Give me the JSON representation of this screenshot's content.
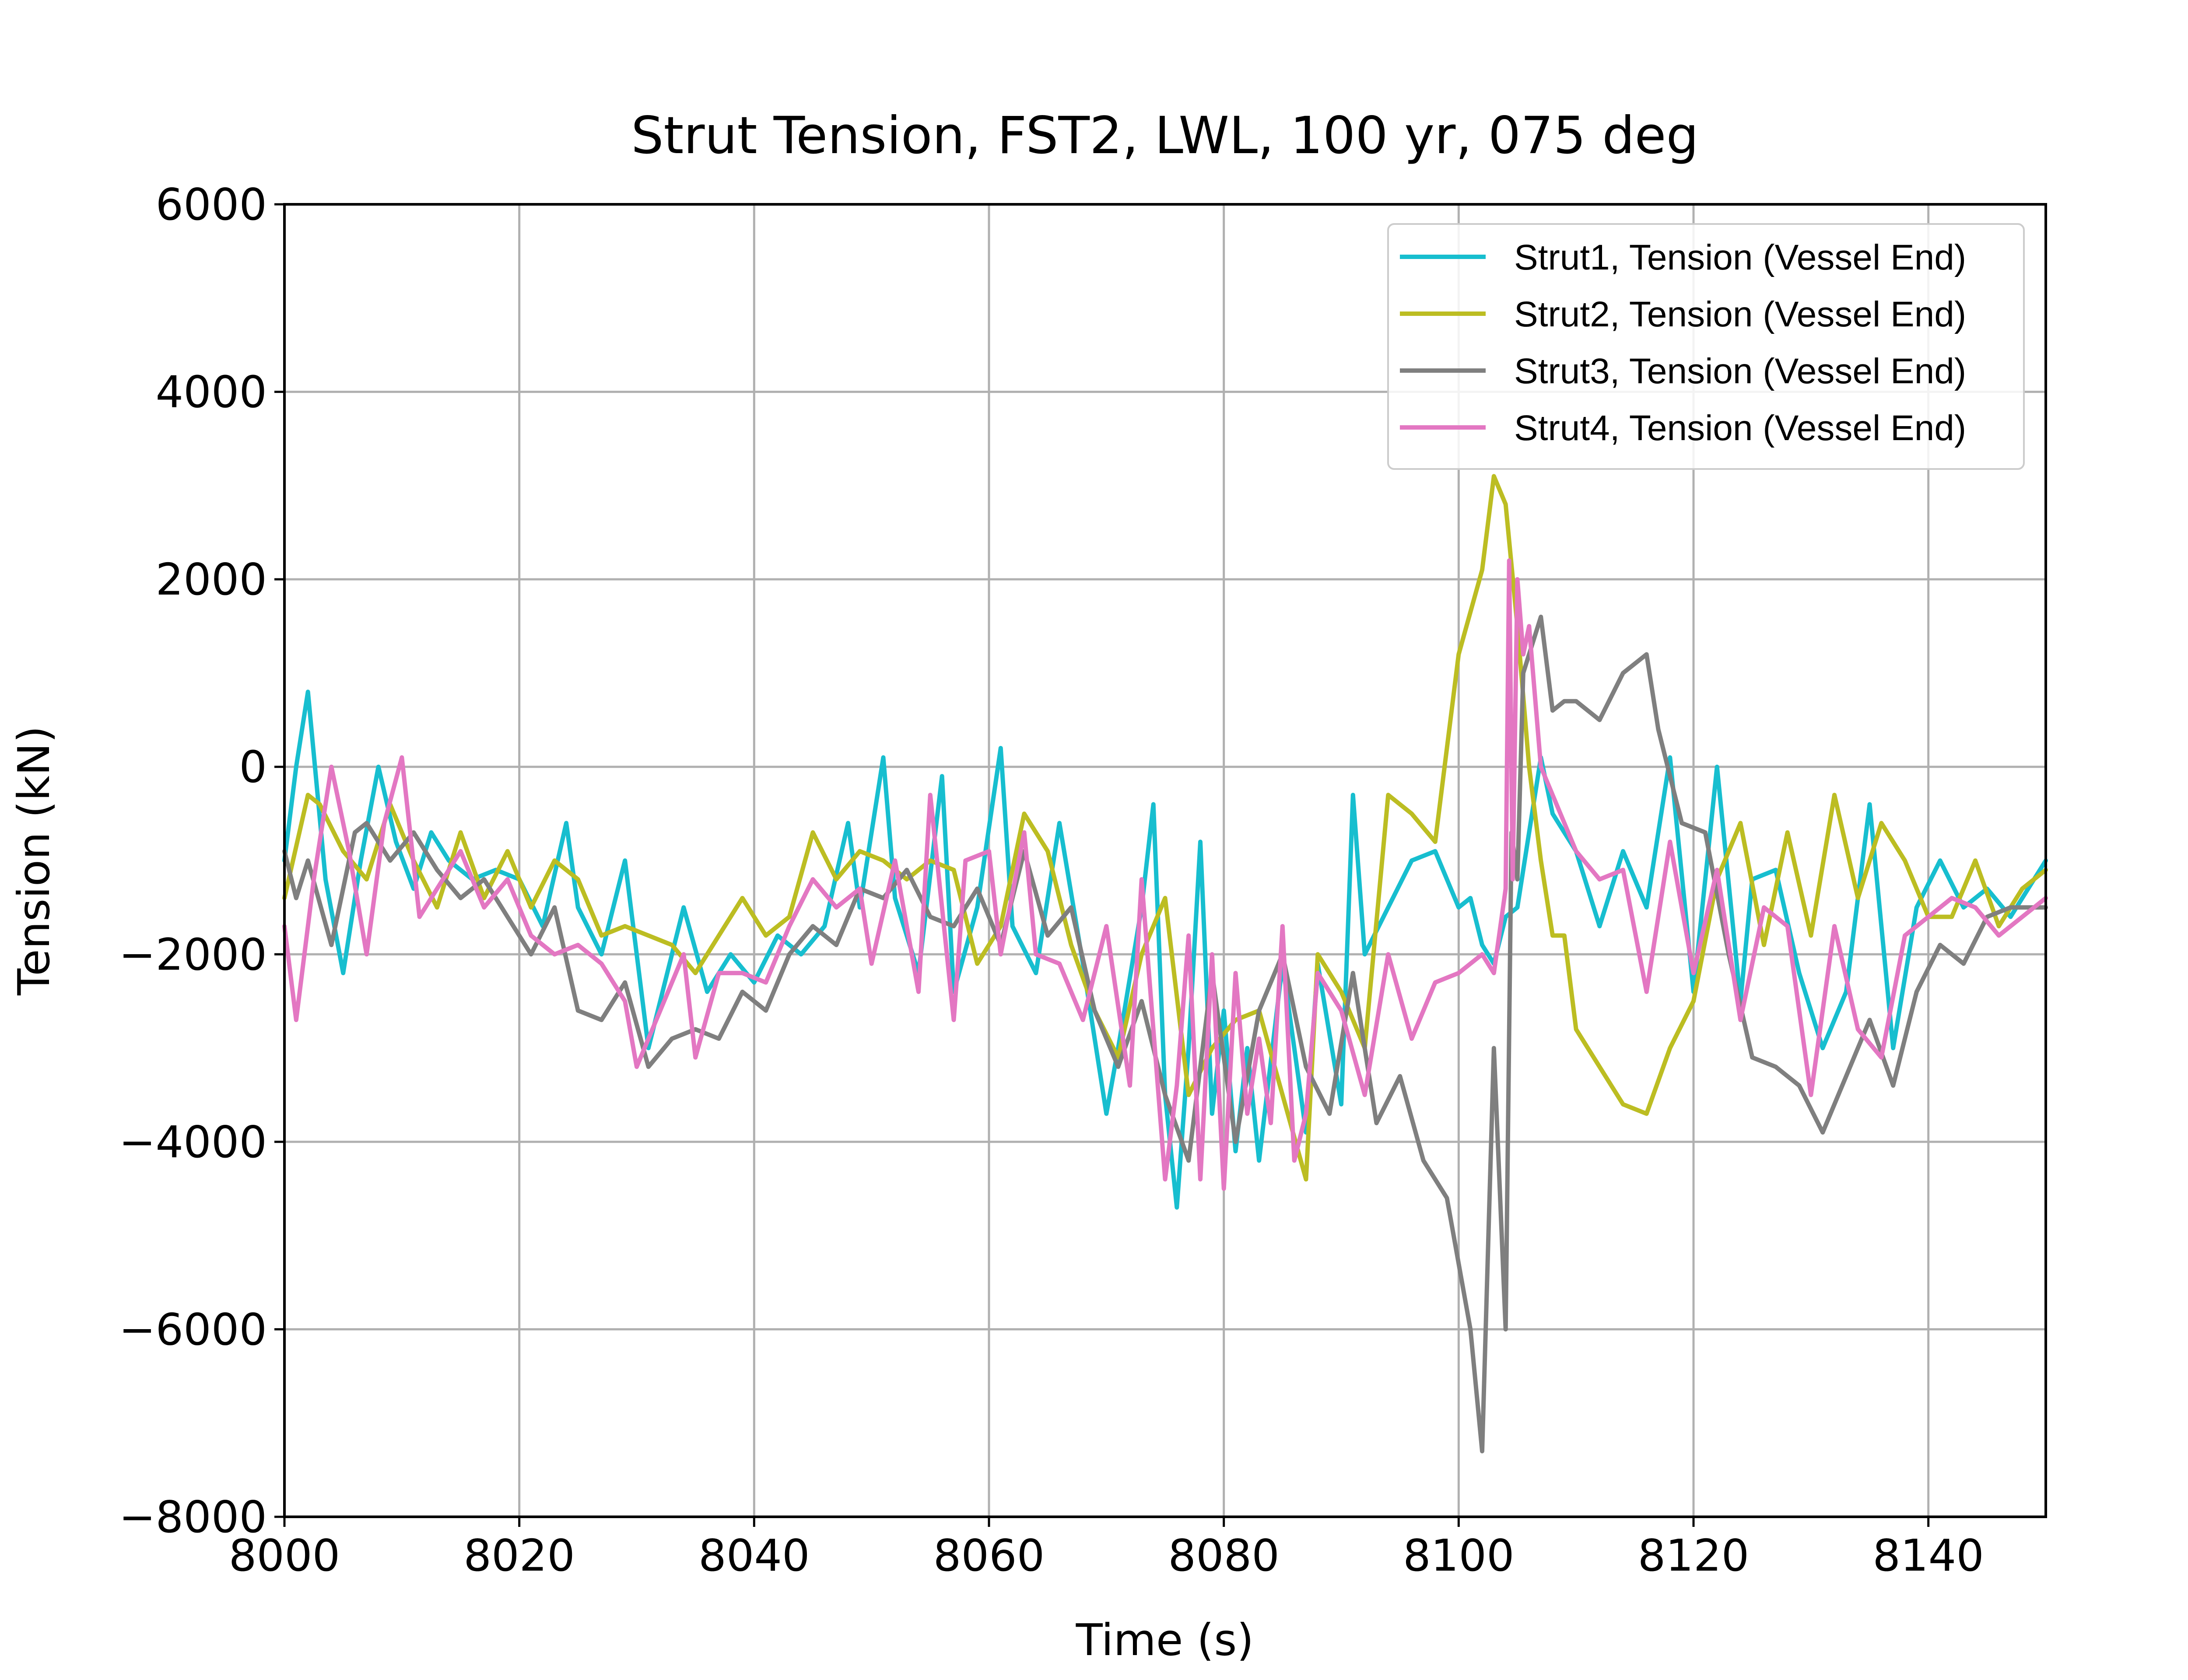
{
  "chart_data": {
    "type": "line",
    "title": "Strut Tension, FST2, LWL, 100 yr, 075 deg",
    "xlabel": "Time (s)",
    "ylabel": "Tension (kN)",
    "xlim": [
      8000,
      8150
    ],
    "ylim": [
      -8000,
      6000
    ],
    "xticks": [
      8000,
      8020,
      8040,
      8060,
      8080,
      8100,
      8120,
      8140
    ],
    "yticks": [
      -8000,
      -6000,
      -4000,
      -2000,
      0,
      2000,
      4000,
      6000
    ],
    "xtick_labels": [
      "8000",
      "8020",
      "8040",
      "8060",
      "8080",
      "8100",
      "8120",
      "8140"
    ],
    "ytick_labels": [
      "−8000",
      "−6000",
      "−4000",
      "−2000",
      "0",
      "2000",
      "4000",
      "6000"
    ],
    "grid": true,
    "legend_position": "top-right",
    "series": [
      {
        "name": "Strut1, Tension (Vessel End)",
        "color": "#17becf",
        "x": [
          8000,
          8001,
          8002,
          8003.5,
          8005,
          8006.5,
          8008,
          8009.5,
          8011,
          8012.5,
          8014,
          8016,
          8018,
          8020,
          8022,
          8024,
          8025,
          8027,
          8029,
          8031,
          8032,
          8034,
          8036,
          8038,
          8040,
          8042,
          8044,
          8046,
          8048,
          8049,
          8051,
          8052,
          8054,
          8056,
          8057,
          8059,
          8061,
          8062,
          8064,
          8066,
          8068,
          8070,
          8071,
          8073,
          8074,
          8075,
          8076,
          8077,
          8078,
          8079,
          8080,
          8081,
          8082,
          8083,
          8085,
          8087,
          8088,
          8090,
          8091,
          8092,
          8094,
          8096,
          8098,
          8100,
          8101,
          8102,
          8103,
          8104,
          8105,
          8106,
          8107,
          8108,
          8109,
          8110,
          8112,
          8114,
          8116,
          8118,
          8120,
          8122,
          8124,
          8125,
          8127,
          8129,
          8131,
          8133,
          8135,
          8137,
          8139,
          8141,
          8143,
          8145,
          8147,
          8150
        ],
        "y": [
          -1000,
          0,
          800,
          -1200,
          -2200,
          -1000,
          0,
          -800,
          -1300,
          -700,
          -1000,
          -1200,
          -1100,
          -1200,
          -1700,
          -600,
          -1500,
          -2000,
          -1000,
          -3000,
          -2500,
          -1500,
          -2400,
          -2000,
          -2300,
          -1800,
          -2000,
          -1700,
          -600,
          -1500,
          100,
          -1400,
          -2200,
          -100,
          -2400,
          -1500,
          200,
          -1700,
          -2200,
          -600,
          -2100,
          -3700,
          -3000,
          -1500,
          -400,
          -3500,
          -4700,
          -3000,
          -800,
          -3700,
          -2600,
          -4100,
          -3000,
          -4200,
          -2100,
          -3900,
          -2100,
          -3600,
          -300,
          -2000,
          -1500,
          -1000,
          -900,
          -1500,
          -1400,
          -1900,
          -2100,
          -1600,
          -1500,
          -700,
          100,
          -500,
          -700,
          -900,
          -1700,
          -900,
          -1500,
          100,
          -2400,
          0,
          -2500,
          -1200,
          -1100,
          -2200,
          -3000,
          -2400,
          -400,
          -3000,
          -1500,
          -1000,
          -1500,
          -1300,
          -1600,
          -1000
        ]
      },
      {
        "name": "Strut2, Tension (Vessel End)",
        "color": "#bcbd22",
        "x": [
          8000,
          8002,
          8003,
          8005,
          8007,
          8009,
          8011,
          8013,
          8015,
          8017,
          8019,
          8021,
          8023,
          8025,
          8027,
          8029,
          8031,
          8033,
          8035,
          8037,
          8039,
          8041,
          8043,
          8045,
          8047,
          8049,
          8051,
          8053,
          8055,
          8057,
          8059,
          8061,
          8063,
          8065,
          8067,
          8069,
          8071,
          8073,
          8075,
          8077,
          8079,
          8081,
          8083,
          8085,
          8087,
          8088,
          8090,
          8092,
          8094,
          8096,
          8098,
          8100,
          8102,
          8103,
          8104,
          8105,
          8106,
          8107,
          8108,
          8109,
          8110,
          8112,
          8114,
          8116,
          8118,
          8120,
          8122,
          8124,
          8126,
          8128,
          8130,
          8132,
          8134,
          8136,
          8138,
          8140,
          8142,
          8144,
          8146,
          8148,
          8150
        ],
        "y": [
          -1400,
          -300,
          -400,
          -900,
          -1200,
          -400,
          -1000,
          -1500,
          -700,
          -1400,
          -900,
          -1500,
          -1000,
          -1200,
          -1800,
          -1700,
          -1800,
          -1900,
          -2200,
          -1800,
          -1400,
          -1800,
          -1600,
          -700,
          -1200,
          -900,
          -1000,
          -1200,
          -1000,
          -1100,
          -2100,
          -1700,
          -500,
          -900,
          -1900,
          -2600,
          -3100,
          -2000,
          -1400,
          -3500,
          -3000,
          -2700,
          -2600,
          -3500,
          -4400,
          -2000,
          -2400,
          -3000,
          -300,
          -500,
          -800,
          1200,
          2100,
          3100,
          2800,
          1500,
          0,
          -1000,
          -1800,
          -1800,
          -2800,
          -3200,
          -3600,
          -3700,
          -3000,
          -2500,
          -1200,
          -600,
          -1900,
          -700,
          -1800,
          -300,
          -1400,
          -600,
          -1000,
          -1600,
          -1600,
          -1000,
          -1700,
          -1300,
          -1100
        ]
      },
      {
        "name": "Strut3, Tension (Vessel End)",
        "color": "#7f7f7f",
        "x": [
          8000,
          8001,
          8002,
          8004,
          8006,
          8007,
          8009,
          8011,
          8013,
          8015,
          8017,
          8019,
          8021,
          8023,
          8025,
          8027,
          8029,
          8031,
          8033,
          8035,
          8037,
          8039,
          8041,
          8043,
          8045,
          8047,
          8049,
          8051,
          8053,
          8055,
          8057,
          8059,
          8061,
          8063,
          8065,
          8067,
          8069,
          8071,
          8073,
          8075,
          8077,
          8079,
          8081,
          8083,
          8085,
          8087,
          8089,
          8091,
          8093,
          8095,
          8097,
          8099,
          8101,
          8102,
          8103,
          8104,
          8104.5,
          8105,
          8105.5,
          8106,
          8107,
          8108,
          8109,
          8110,
          8112,
          8114,
          8116,
          8117,
          8119,
          8121,
          8123,
          8125,
          8127,
          8129,
          8131,
          8133,
          8135,
          8137,
          8139,
          8141,
          8143,
          8145,
          8147,
          8150
        ],
        "y": [
          -900,
          -1400,
          -1000,
          -1900,
          -700,
          -600,
          -1000,
          -700,
          -1100,
          -1400,
          -1200,
          -1600,
          -2000,
          -1500,
          -2600,
          -2700,
          -2300,
          -3200,
          -2900,
          -2800,
          -2900,
          -2400,
          -2600,
          -2000,
          -1700,
          -1900,
          -1300,
          -1400,
          -1100,
          -1600,
          -1700,
          -1300,
          -1900,
          -900,
          -1800,
          -1500,
          -2600,
          -3200,
          -2500,
          -3500,
          -4200,
          -2200,
          -4000,
          -2600,
          -2000,
          -3200,
          -3700,
          -2200,
          -3800,
          -3300,
          -4200,
          -4600,
          -6000,
          -7300,
          -3000,
          -6000,
          -700,
          -1200,
          1000,
          1200,
          1600,
          600,
          700,
          700,
          500,
          1000,
          1200,
          400,
          -600,
          -700,
          -2000,
          -3100,
          -3200,
          -3400,
          -3900,
          -3300,
          -2700,
          -3400,
          -2400,
          -1900,
          -2100,
          -1600,
          -1500,
          -1500
        ]
      },
      {
        "name": "Strut4, Tension (Vessel End)",
        "color": "#e377c2",
        "x": [
          8000,
          8001,
          8002.5,
          8004,
          8005.5,
          8007,
          8008.5,
          8010,
          8011.5,
          8013,
          8015,
          8017,
          8019,
          8021,
          8023,
          8025,
          8027,
          8029,
          8030,
          8032,
          8034,
          8035,
          8037,
          8039,
          8041,
          8043,
          8045,
          8047,
          8049,
          8050,
          8052,
          8054,
          8055,
          8057,
          8058,
          8060,
          8061,
          8063,
          8064,
          8066,
          8068,
          8070,
          8072,
          8073,
          8075,
          8076,
          8077,
          8078,
          8079,
          8080,
          8081,
          8082,
          8083,
          8084,
          8085,
          8086,
          8087,
          8088,
          8090,
          8092,
          8094,
          8096,
          8098,
          8100,
          8102,
          8103,
          8104,
          8104.3,
          8104.6,
          8105,
          8105.5,
          8106,
          8107,
          8108,
          8110,
          8112,
          8114,
          8116,
          8118,
          8120,
          8122,
          8124,
          8126,
          8128,
          8130,
          8132,
          8134,
          8136,
          8138,
          8140,
          8142,
          8144,
          8146,
          8148,
          8150
        ],
        "y": [
          -1700,
          -2700,
          -1200,
          0,
          -900,
          -2000,
          -600,
          100,
          -1600,
          -1300,
          -900,
          -1500,
          -1200,
          -1800,
          -2000,
          -1900,
          -2100,
          -2500,
          -3200,
          -2600,
          -2000,
          -3100,
          -2200,
          -2200,
          -2300,
          -1700,
          -1200,
          -1500,
          -1300,
          -2100,
          -1000,
          -2400,
          -300,
          -2700,
          -1000,
          -900,
          -2000,
          -700,
          -2000,
          -2100,
          -2700,
          -1700,
          -3400,
          -1200,
          -4400,
          -3400,
          -1800,
          -4400,
          -2000,
          -4500,
          -2200,
          -3700,
          -2900,
          -3800,
          -1700,
          -4200,
          -3700,
          -2200,
          -2600,
          -3500,
          -2000,
          -2900,
          -2300,
          -2200,
          -2000,
          -2200,
          -1300,
          2200,
          -1200,
          2000,
          1200,
          1500,
          0,
          -300,
          -900,
          -1200,
          -1100,
          -2400,
          -800,
          -2200,
          -1100,
          -2700,
          -1500,
          -1700,
          -3500,
          -1700,
          -2800,
          -3100,
          -1800,
          -1600,
          -1400,
          -1500,
          -1800,
          -1600,
          -1400
        ]
      }
    ]
  }
}
